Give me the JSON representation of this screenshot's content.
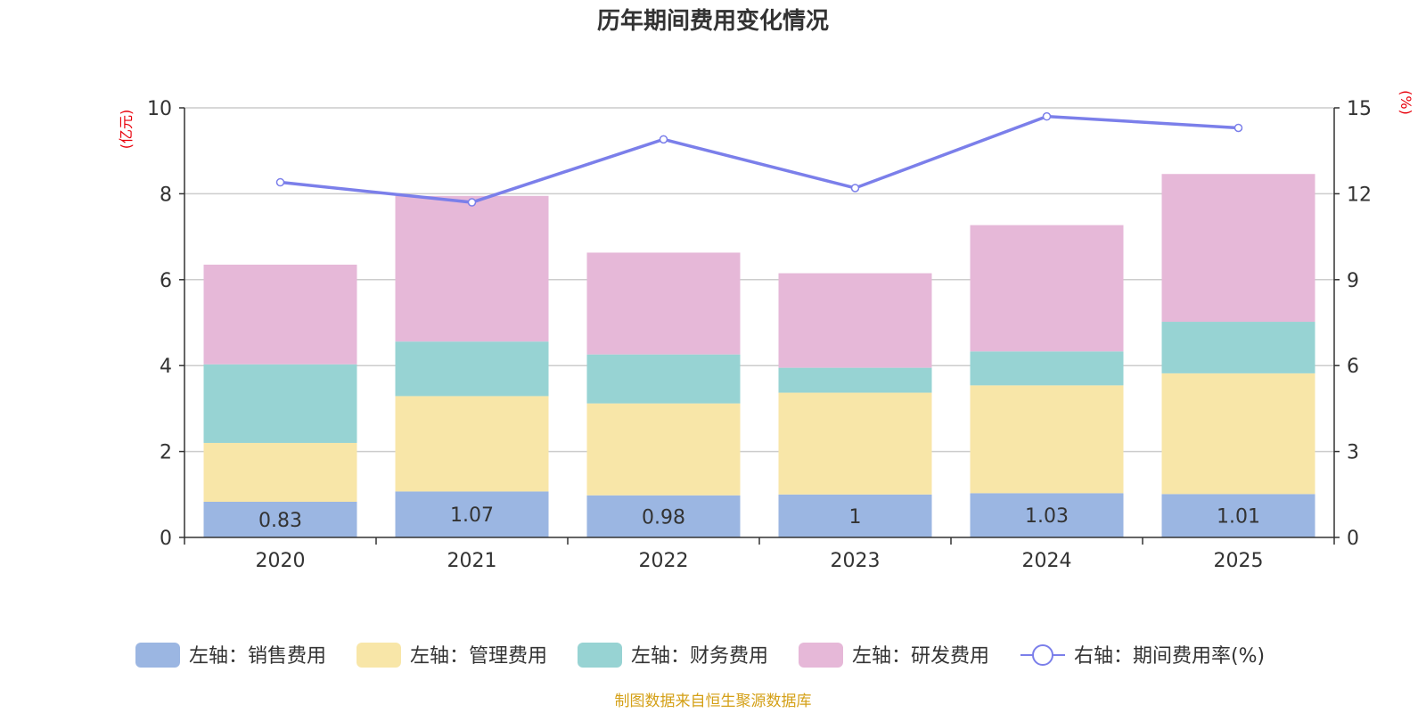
{
  "chart_data": {
    "type": "bar",
    "stacked": true,
    "title": "历年期间费用变化情况",
    "categories": [
      "2020",
      "2021",
      "2022",
      "2023",
      "2024",
      "2025"
    ],
    "left_axis": {
      "unit": "(亿元)",
      "ylim": [
        0,
        10
      ],
      "ticks": [
        "0",
        "2",
        "4",
        "6",
        "8",
        "10"
      ]
    },
    "right_axis": {
      "unit": "(%)",
      "ylim": [
        0,
        15
      ],
      "ticks": [
        "0",
        "3",
        "6",
        "9",
        "12",
        "15"
      ]
    },
    "series": [
      {
        "name": "左轴：销售费用",
        "axis": "left",
        "kind": "bar",
        "color": "#9bb6e2",
        "values": [
          0.83,
          1.07,
          0.98,
          1,
          1.03,
          1.01
        ],
        "labels": [
          "0.83",
          "1.07",
          "0.98",
          "1",
          "1.03",
          "1.01"
        ]
      },
      {
        "name": "左轴：管理费用",
        "axis": "left",
        "kind": "bar",
        "color": "#f8e6a8",
        "values": [
          1.37,
          2.22,
          2.14,
          2.37,
          2.51,
          2.81
        ]
      },
      {
        "name": "左轴：财务费用",
        "axis": "left",
        "kind": "bar",
        "color": "#97d3d3",
        "values": [
          1.83,
          1.27,
          1.14,
          0.58,
          0.79,
          1.2
        ]
      },
      {
        "name": "左轴：研发费用",
        "axis": "left",
        "kind": "bar",
        "color": "#e6b8d8",
        "values": [
          2.32,
          3.39,
          2.37,
          2.2,
          2.94,
          3.44
        ]
      },
      {
        "name": "右轴：期间费用率(%)",
        "axis": "right",
        "kind": "line",
        "color": "#7b7fea",
        "values": [
          12.4,
          11.7,
          13.9,
          12.2,
          14.7,
          14.3
        ]
      }
    ],
    "grid": true,
    "legend": "bottom"
  },
  "source": "制图数据来自恒生聚源数据库",
  "colors": {
    "axis_unit": "#e8000b",
    "source": "#d4a017",
    "grid": "#cccccc",
    "axis": "#333333"
  }
}
